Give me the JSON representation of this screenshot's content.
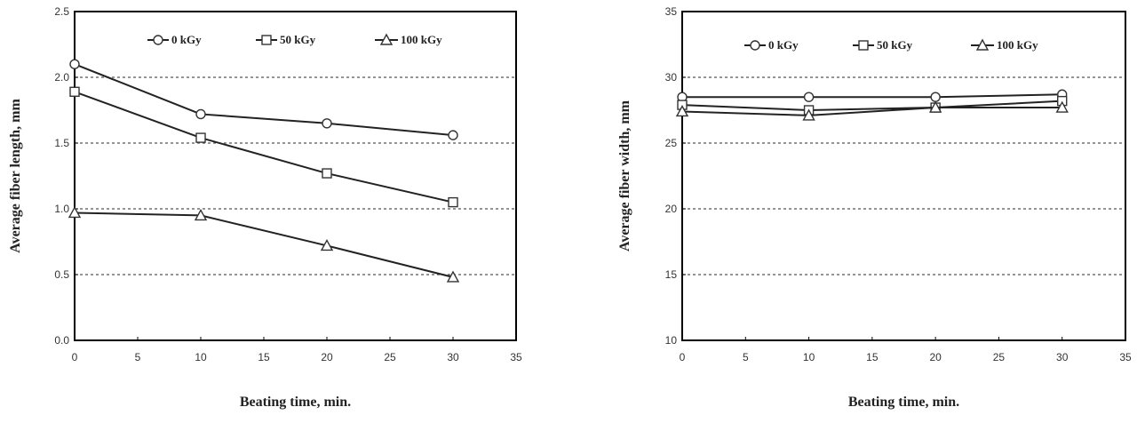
{
  "chart_data": [
    {
      "type": "line",
      "title": "",
      "xlabel": "Beating time, min.",
      "ylabel": "Average fiber length, mm",
      "xlim": [
        0,
        35
      ],
      "ylim": [
        0,
        2.5
      ],
      "xticks": [
        0,
        5,
        10,
        15,
        20,
        25,
        30,
        35
      ],
      "xtick_labels": [
        "0",
        "5",
        "10",
        "15",
        "20",
        "25",
        "30",
        "35"
      ],
      "yticks": [
        0,
        0.5,
        1.0,
        1.5,
        2.0,
        2.5
      ],
      "ytick_labels": [
        "0.0",
        "0.5",
        "1.0",
        "1.5",
        "2.0",
        "2.5"
      ],
      "grid": "horizontal dashed",
      "legend_position": "top",
      "x": [
        0,
        10,
        20,
        30
      ],
      "series": [
        {
          "name": "0 kGy",
          "marker": "circle",
          "values": [
            2.1,
            1.72,
            1.65,
            1.56
          ]
        },
        {
          "name": "50 kGy",
          "marker": "square",
          "values": [
            1.89,
            1.54,
            1.27,
            1.05
          ]
        },
        {
          "name": "100 kGy",
          "marker": "triangle",
          "values": [
            0.97,
            0.95,
            0.72,
            0.48
          ]
        }
      ]
    },
    {
      "type": "line",
      "title": "",
      "xlabel": "Beating time, min.",
      "ylabel": "Average fiber width, mm",
      "xlim": [
        0,
        35
      ],
      "ylim": [
        10,
        35
      ],
      "xticks": [
        0,
        5,
        10,
        15,
        20,
        25,
        30,
        35
      ],
      "xtick_labels": [
        "0",
        "5",
        "10",
        "15",
        "20",
        "25",
        "30",
        "35"
      ],
      "yticks": [
        10,
        15,
        20,
        25,
        30,
        35
      ],
      "ytick_labels": [
        "10",
        "15",
        "20",
        "25",
        "30",
        "35"
      ],
      "grid": "horizontal dashed",
      "legend_position": "top",
      "x": [
        0,
        10,
        20,
        30
      ],
      "series": [
        {
          "name": "0 kGy",
          "marker": "circle",
          "values": [
            28.5,
            28.5,
            28.5,
            28.7
          ]
        },
        {
          "name": "50 kGy",
          "marker": "square",
          "values": [
            27.9,
            27.5,
            27.7,
            28.2
          ]
        },
        {
          "name": "100 kGy",
          "marker": "triangle",
          "values": [
            27.4,
            27.1,
            27.7,
            27.7
          ]
        }
      ]
    }
  ]
}
